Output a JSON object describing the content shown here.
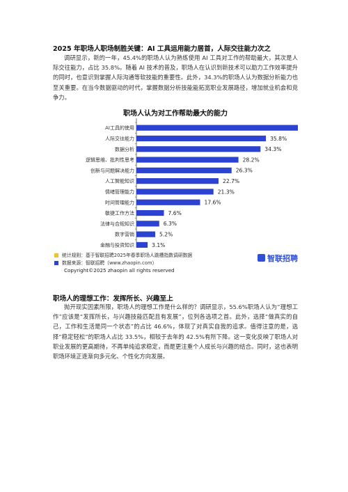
{
  "section1": {
    "title": "2025 年职场人职场制胜关键：AI 工具运用能力居首，人际交往能力次之",
    "body": "调研显示，新的一年，45.4%的职场人认为熟练使用 AI 工具对工作的帮助最大，其次是人际交往能力，占比 35.8%。随着 AI 技术的普及，职场人在认识到新技术可以助力工作效率提升的同时，也意识到掌握人际沟通等软技能的重要性。此外，34.3%的职场人认为数据分析能力也至关重要。在当今数据驱动的时代，掌握数据分析技能能拓宽职业发展路径，增加就业机会和竞争力。"
  },
  "chart_data": {
    "type": "bar",
    "orientation": "horizontal",
    "title": "职场人认为对工作帮助最大的能力",
    "categories": [
      "AI工具的使用",
      "人际交往能力",
      "数据分析",
      "逻辑思维、批判性思考",
      "创新与问题解决能力",
      "人工智能知识",
      "情绪管理能力",
      "时间管理能力",
      "敏捷工作方法",
      "法律与合规知识",
      "数字营销",
      "金融与投资知识"
    ],
    "values": [
      45.4,
      35.8,
      34.3,
      28.2,
      26.3,
      22.7,
      21.3,
      17.6,
      7.6,
      6.3,
      5.2,
      3.1
    ],
    "value_format": "percent",
    "bar_color": "#2b43d0",
    "xlim": [
      0,
      50
    ],
    "grid": false,
    "axis_labels_shown": false
  },
  "legend": {
    "rule_text": "统计规则：基于智联招聘2025年春季职场人跳槽指数调研数据",
    "rule_color": "#f0c330",
    "source_text": "数据来源：智联招聘（www.zhaopin.com）",
    "source_color": "#2b43d0"
  },
  "logo": {
    "text": "智联招聘",
    "icon": "zhaopin-logo-icon",
    "color": "#2f4fd6"
  },
  "copyright": "Copyright©2025 zhaopin all rights reserved",
  "section2": {
    "title": "职场人的理想工作：发挥所长、兴趣至上",
    "body": "抛开现实因素所限，职场人的理想工作是什么样的？调研显示，55.6%职场人认为“理想工作”应该是“发挥所长，与兴趣技能匹配且有发展”，位列各选项之首。此外，选择“做真实的自己，工作和生活是同一个状态”的占比 46.6%，体现了对真实自我的追求。值得注意的是，选择“稳定轻松”的职场人占比 33.5%，相较于去年的 42.5%有所下降。这一变化反映了职场人对职业发展的更高期待，不再单纯追求稳定，而是更注重个人成长与兴趣的结合。同时，这也表明职场环境正逐渐向多元化、个性化方向发展。"
  }
}
